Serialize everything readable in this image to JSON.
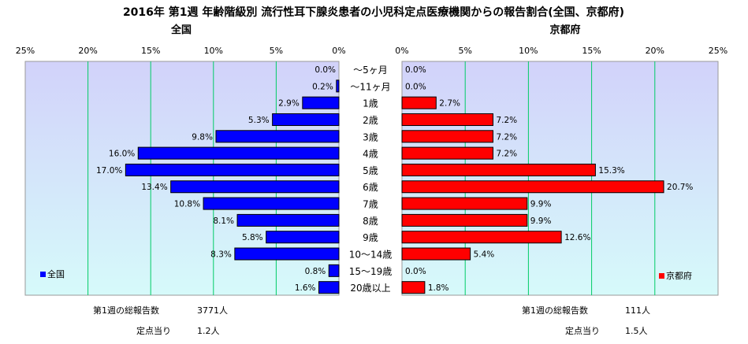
{
  "title": "2016年 第1週 年齢階級別 流行性耳下腺炎患者の小児科定点医療機関からの報告割合(全国、京都府)",
  "chart_data": [
    {
      "type": "bar",
      "orientation": "horizontal",
      "direction": "leftward",
      "title": "全国",
      "legend": "全国",
      "legend_position": "bottom-left",
      "color": "#0000ff",
      "xlim": [
        0,
        25
      ],
      "tick_values": [
        25,
        20,
        15,
        10,
        5,
        0
      ],
      "tick_labels": [
        "25%",
        "20%",
        "15%",
        "10%",
        "5%",
        "0%"
      ],
      "categories": [
        "〜5ヶ月",
        "〜11ヶ月",
        "1歳",
        "2歳",
        "3歳",
        "4歳",
        "5歳",
        "6歳",
        "7歳",
        "8歳",
        "9歳",
        "10〜14歳",
        "15〜19歳",
        "20歳以上"
      ],
      "values": [
        0.0,
        0.2,
        2.9,
        5.3,
        9.8,
        16.0,
        17.0,
        13.4,
        10.8,
        8.1,
        5.8,
        8.3,
        0.8,
        1.6
      ],
      "value_labels": [
        "0.0%",
        "0.2%",
        "2.9%",
        "5.3%",
        "9.8%",
        "16.0%",
        "17.0%",
        "13.4%",
        "10.8%",
        "8.1%",
        "5.8%",
        "8.3%",
        "0.8%",
        "1.6%"
      ],
      "grid": true
    },
    {
      "type": "bar",
      "orientation": "horizontal",
      "direction": "rightward",
      "title": "京都府",
      "legend": "京都府",
      "legend_position": "bottom-right",
      "color": "#ff0000",
      "xlim": [
        0,
        25
      ],
      "tick_values": [
        0,
        5,
        10,
        15,
        20,
        25
      ],
      "tick_labels": [
        "0%",
        "5%",
        "10%",
        "15%",
        "20%",
        "25%"
      ],
      "categories": [
        "〜5ヶ月",
        "〜11ヶ月",
        "1歳",
        "2歳",
        "3歳",
        "4歳",
        "5歳",
        "6歳",
        "7歳",
        "8歳",
        "9歳",
        "10〜14歳",
        "15〜19歳",
        "20歳以上"
      ],
      "values": [
        0.0,
        0.0,
        2.7,
        7.2,
        7.2,
        7.2,
        15.3,
        20.7,
        9.9,
        9.9,
        12.6,
        5.4,
        0.0,
        1.8
      ],
      "value_labels": [
        "0.0%",
        "0.0%",
        "2.7%",
        "7.2%",
        "7.2%",
        "7.2%",
        "15.3%",
        "20.7%",
        "9.9%",
        "9.9%",
        "12.6%",
        "5.4%",
        "0.0%",
        "1.8%"
      ],
      "grid": true
    }
  ],
  "footer": {
    "left_total_label": "第1週の総報告数",
    "left_total_value": "3771人",
    "left_per_label": "定点当り",
    "left_per_value": "1.2人",
    "right_total_label": "第1週の総報告数",
    "right_total_value": "111人",
    "right_per_label": "定点当り",
    "right_per_value": "1.5人"
  },
  "colors": {
    "plot_top": "#d2d2fa",
    "plot_bottom": "#d6fafa",
    "grid": "#00cc66",
    "left_bar": "#0000ff",
    "right_bar": "#ff0000"
  }
}
